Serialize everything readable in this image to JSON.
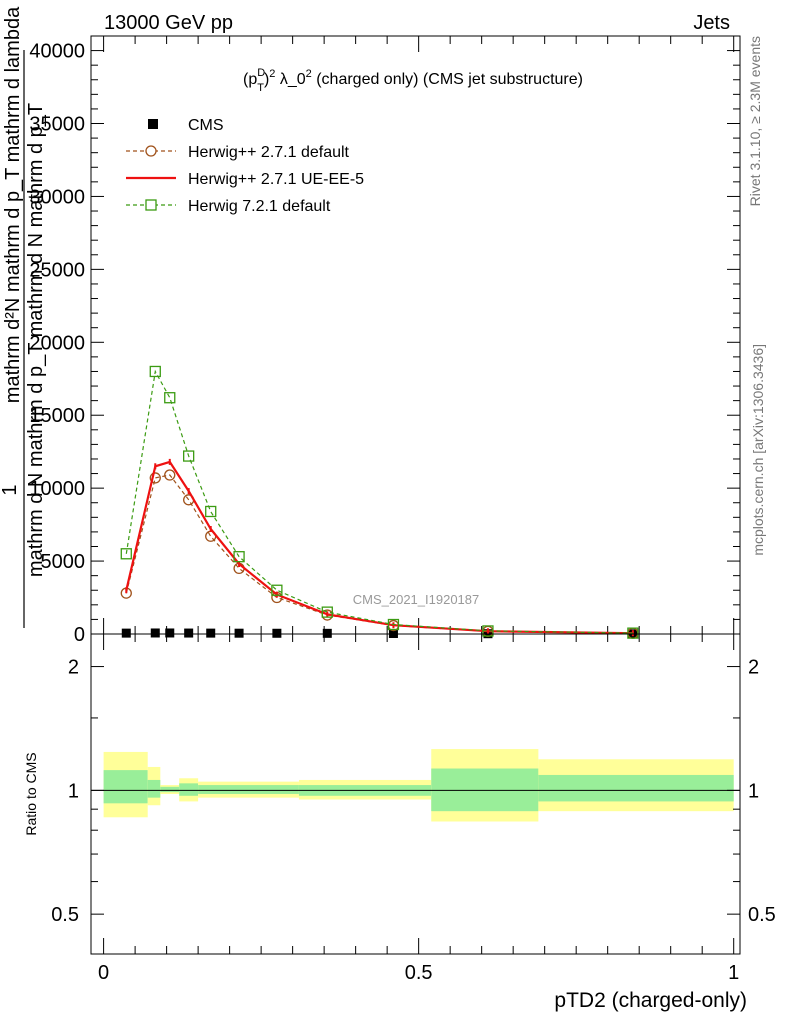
{
  "header": {
    "left": "13000 GeV pp",
    "right": "Jets"
  },
  "side_labels": {
    "rivet": "Rivet 3.1.10, ≥ 2.3M events",
    "mcplots": "mcplots.cern.ch [arXiv:1306.3436]"
  },
  "watermark": "CMS_2021_I1920187",
  "chart_data": [
    {
      "type": "line",
      "panel": "main",
      "title_parts": {
        "p": "(p",
        "sup_d": "D",
        "sub_t": "T",
        "close": ")",
        "sq1": "2",
        "mid": " λ_0",
        "sq2": "2",
        "rest": " (charged only) (CMS jet substructure)"
      },
      "ylabel_lines": [
        "1",
        "mathrm d N mathrm d p_T mathrm d N mathrm d p_T",
        "mathrm d²N mathrm d p_T mathrm d lambda"
      ],
      "ylim": [
        0,
        41000
      ],
      "xlim": [
        -0.02,
        1.01
      ],
      "y_ticks": [
        0,
        5000,
        10000,
        15000,
        20000,
        25000,
        30000,
        35000,
        40000
      ],
      "y_tick_labels": [
        "0",
        "5000",
        "10000",
        "15000",
        "20000",
        "25000",
        "30000",
        "35000",
        "40000"
      ],
      "legend_position": "top-left",
      "series": [
        {
          "name": "CMS",
          "style": "data-square",
          "color": "#000000",
          "x": [
            0.036,
            0.082,
            0.105,
            0.135,
            0.17,
            0.215,
            0.275,
            0.355,
            0.46,
            0.61,
            0.84
          ],
          "y": [
            60,
            70,
            70,
            65,
            60,
            55,
            50,
            45,
            35,
            20,
            10
          ]
        },
        {
          "name": "Herwig++ 2.7.1 default",
          "style": "dashed-circle",
          "color": "#a0521b",
          "x": [
            0.036,
            0.082,
            0.105,
            0.135,
            0.17,
            0.215,
            0.275,
            0.355,
            0.46,
            0.61,
            0.84
          ],
          "y": [
            2800,
            10700,
            10900,
            9200,
            6700,
            4500,
            2500,
            1300,
            580,
            180,
            50
          ]
        },
        {
          "name": "Herwig++ 2.7.1 UE-EE-5",
          "style": "solid",
          "color": "#ee1111",
          "x": [
            0.036,
            0.082,
            0.105,
            0.135,
            0.17,
            0.215,
            0.275,
            0.355,
            0.46,
            0.61,
            0.84
          ],
          "y": [
            3000,
            11500,
            11800,
            9800,
            7200,
            4800,
            2700,
            1350,
            600,
            190,
            55
          ]
        },
        {
          "name": "Herwig 7.2.1 default",
          "style": "dashed-square",
          "color": "#3b9b12",
          "x": [
            0.036,
            0.082,
            0.105,
            0.135,
            0.17,
            0.215,
            0.275,
            0.355,
            0.46,
            0.61,
            0.84
          ],
          "y": [
            5500,
            18000,
            16200,
            12200,
            8400,
            5300,
            3000,
            1500,
            650,
            210,
            60
          ]
        }
      ]
    },
    {
      "type": "area",
      "panel": "ratio",
      "ylabel": "Ratio to CMS",
      "y_scale": "log",
      "ylim": [
        0.4,
        2.4
      ],
      "xlim": [
        -0.02,
        1.01
      ],
      "x_ticks": [
        0,
        0.5,
        1
      ],
      "x_tick_labels": [
        "0",
        "0.5",
        "1"
      ],
      "y_ticks": [
        0.5,
        1,
        2
      ],
      "y_tick_labels": [
        "0.5",
        "1",
        "2"
      ],
      "xlabel": "pTD2 (charged-only)",
      "bins": [
        {
          "x0": 0.0,
          "x1": 0.07,
          "stat_lo": 0.93,
          "stat_hi": 1.12,
          "tot_lo": 0.86,
          "tot_hi": 1.24
        },
        {
          "x0": 0.07,
          "x1": 0.09,
          "stat_lo": 0.96,
          "stat_hi": 1.06,
          "tot_lo": 0.92,
          "tot_hi": 1.14
        },
        {
          "x0": 0.09,
          "x1": 0.12,
          "stat_lo": 0.99,
          "stat_hi": 1.02,
          "tot_lo": 0.98,
          "tot_hi": 1.03
        },
        {
          "x0": 0.12,
          "x1": 0.15,
          "stat_lo": 0.97,
          "stat_hi": 1.04,
          "tot_lo": 0.94,
          "tot_hi": 1.07
        },
        {
          "x0": 0.15,
          "x1": 0.31,
          "stat_lo": 0.98,
          "stat_hi": 1.03,
          "tot_lo": 0.96,
          "tot_hi": 1.05
        },
        {
          "x0": 0.31,
          "x1": 0.52,
          "stat_lo": 0.97,
          "stat_hi": 1.03,
          "tot_lo": 0.95,
          "tot_hi": 1.06
        },
        {
          "x0": 0.52,
          "x1": 0.69,
          "stat_lo": 0.89,
          "stat_hi": 1.13,
          "tot_lo": 0.84,
          "tot_hi": 1.26
        },
        {
          "x0": 0.69,
          "x1": 1.0,
          "stat_lo": 0.94,
          "stat_hi": 1.09,
          "tot_lo": 0.89,
          "tot_hi": 1.19
        }
      ],
      "band_colors": {
        "stat": "#99ee99",
        "total": "#ffff99"
      }
    }
  ]
}
